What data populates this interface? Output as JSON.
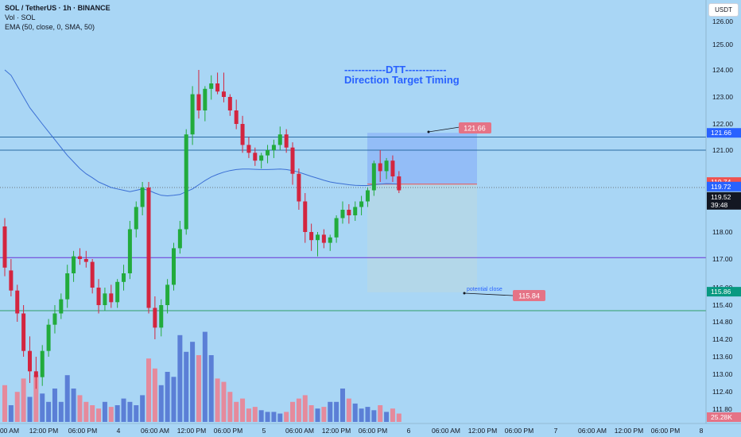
{
  "header": {
    "symbol_line": "SOL / TetherUS · 1h · BINANCE",
    "volume_line": "Vol · SOL",
    "ema_line": "EMA (50, close, 0, SMA, 50)"
  },
  "annotation": {
    "dtt_line": "------------DTT------------",
    "dtt_subtitle": "Direction Target Timing",
    "target_label": "121.66",
    "stop_label": "115.84",
    "potential_close": "potential close"
  },
  "currency_button": "USDT",
  "price_axis": {
    "ticks": [
      "126.00",
      "125.00",
      "124.00",
      "123.00",
      "122.00",
      "121.00",
      "119.00",
      "118.00",
      "117.00",
      "116.00",
      "115.40",
      "114.80",
      "114.20",
      "113.60",
      "113.00",
      "112.40",
      "111.80"
    ],
    "badges": [
      {
        "label": "121.66",
        "price": 121.66,
        "color": "#2962ff",
        "text": "#ffffff"
      },
      {
        "label": "119.74",
        "price": 119.74,
        "color": "#ef5350",
        "text": "#ffffff"
      },
      {
        "label": "119.72",
        "price": 119.72,
        "color": "#2962ff",
        "text": "#ffffff"
      },
      {
        "label": "119.52",
        "sub": "39:48",
        "price": 119.52,
        "color": "#131722",
        "text": "#ffffff"
      },
      {
        "label": "115.86",
        "price": 115.86,
        "color": "#089981",
        "text": "#ffffff"
      }
    ],
    "volume_badge": "25.28K"
  },
  "time_axis": [
    "00 AM",
    "12:00 PM",
    "06:00 PM",
    "4",
    "06:00 AM",
    "12:00 PM",
    "06:00 PM",
    "5",
    "06:00 AM",
    "12:00 PM",
    "06:00 PM",
    "6",
    "06:00 AM",
    "12:00 PM",
    "06:00 PM",
    "7",
    "06:00 AM",
    "12:00 PM",
    "06:00 PM",
    "8"
  ],
  "colors": {
    "up": "#22ab3c",
    "down": "#d3253f",
    "volume_up": "#5b7fd6",
    "volume_down": "#e58a9c",
    "ema": "#3b6fd4",
    "bg": "#a9d6f5"
  },
  "chart_data": {
    "type": "candlestick",
    "title": "SOL / TetherUS · 1h · BINANCE",
    "ylim": [
      111.3,
      126.3
    ],
    "price_levels": [
      {
        "price": 121.5,
        "color": "#2b6ca3"
      },
      {
        "price": 121.0,
        "color": "#2b6ca3"
      },
      {
        "price": 117.05,
        "color": "#6a32d6"
      },
      {
        "price": 115.2,
        "color": "#2f9e66"
      },
      {
        "price": 119.6,
        "color": "#555555",
        "dotted": true
      }
    ],
    "position": {
      "entry": 119.72,
      "target": 121.66,
      "stop": 115.84
    },
    "candles": [
      [
        118.2,
        118.5,
        116.4,
        116.7
      ],
      [
        116.6,
        117.0,
        115.7,
        115.9
      ],
      [
        115.9,
        116.1,
        114.8,
        115.1
      ],
      [
        115.1,
        115.4,
        113.6,
        113.8
      ],
      [
        113.8,
        114.3,
        112.7,
        113.1
      ],
      [
        113.1,
        113.6,
        112.5,
        112.9
      ],
      [
        112.9,
        114.0,
        112.6,
        113.8
      ],
      [
        113.8,
        114.9,
        113.6,
        114.7
      ],
      [
        114.7,
        115.4,
        114.4,
        115.1
      ],
      [
        115.1,
        115.8,
        114.9,
        115.6
      ],
      [
        115.6,
        116.8,
        115.3,
        116.5
      ],
      [
        116.5,
        117.3,
        116.2,
        117.1
      ],
      [
        117.1,
        117.4,
        116.8,
        117.0
      ],
      [
        117.0,
        117.3,
        116.7,
        116.9
      ],
      [
        116.9,
        117.0,
        115.8,
        116.0
      ],
      [
        116.0,
        116.3,
        115.1,
        115.4
      ],
      [
        115.4,
        116.0,
        115.2,
        115.8
      ],
      [
        115.8,
        116.1,
        115.3,
        115.5
      ],
      [
        115.5,
        116.3,
        115.3,
        116.2
      ],
      [
        116.2,
        116.8,
        115.9,
        116.5
      ],
      [
        116.5,
        118.4,
        116.3,
        118.1
      ],
      [
        118.1,
        119.1,
        117.8,
        118.9
      ],
      [
        118.9,
        119.8,
        118.6,
        119.6
      ],
      [
        119.6,
        119.8,
        115.1,
        115.3
      ],
      [
        115.3,
        115.7,
        114.2,
        114.6
      ],
      [
        114.6,
        115.6,
        114.3,
        115.4
      ],
      [
        115.4,
        116.3,
        115.1,
        116.1
      ],
      [
        116.1,
        117.6,
        115.9,
        117.4
      ],
      [
        117.4,
        118.4,
        117.2,
        118.1
      ],
      [
        118.1,
        121.8,
        117.9,
        121.6
      ],
      [
        121.6,
        123.4,
        121.2,
        123.1
      ],
      [
        123.1,
        124.0,
        122.2,
        122.5
      ],
      [
        122.5,
        123.4,
        122.1,
        123.3
      ],
      [
        123.3,
        123.8,
        122.9,
        123.5
      ],
      [
        123.5,
        123.9,
        123.1,
        123.2
      ],
      [
        123.2,
        123.9,
        122.8,
        123.0
      ],
      [
        123.0,
        123.1,
        122.3,
        122.5
      ],
      [
        122.5,
        122.9,
        121.8,
        122.0
      ],
      [
        122.0,
        122.3,
        120.9,
        121.2
      ],
      [
        121.2,
        121.5,
        120.7,
        120.9
      ],
      [
        120.9,
        121.1,
        120.4,
        120.6
      ],
      [
        120.6,
        120.9,
        120.3,
        120.8
      ],
      [
        120.8,
        121.2,
        120.5,
        121.0
      ],
      [
        121.0,
        121.4,
        120.7,
        121.2
      ],
      [
        121.2,
        121.9,
        121.0,
        121.6
      ],
      [
        121.6,
        121.8,
        120.9,
        121.1
      ],
      [
        121.1,
        121.3,
        119.7,
        120.1
      ],
      [
        120.1,
        120.3,
        118.8,
        119.1
      ],
      [
        119.1,
        119.4,
        117.6,
        118.0
      ],
      [
        118.0,
        118.3,
        117.3,
        117.7
      ],
      [
        117.7,
        118.0,
        117.1,
        117.9
      ],
      [
        117.9,
        118.1,
        117.4,
        117.6
      ],
      [
        117.6,
        117.9,
        117.3,
        117.8
      ],
      [
        117.8,
        118.6,
        117.6,
        118.5
      ],
      [
        118.5,
        119.1,
        118.3,
        118.8
      ],
      [
        118.8,
        119.0,
        118.3,
        118.6
      ],
      [
        118.6,
        119.1,
        118.4,
        118.9
      ],
      [
        118.9,
        119.3,
        118.6,
        119.1
      ],
      [
        119.1,
        119.6,
        118.9,
        119.5
      ],
      [
        119.5,
        120.6,
        119.3,
        120.5
      ],
      [
        120.5,
        121.0,
        119.8,
        120.2
      ],
      [
        120.2,
        120.7,
        119.9,
        120.6
      ],
      [
        120.6,
        120.8,
        119.8,
        120.0
      ],
      [
        120.0,
        120.2,
        119.4,
        119.5
      ]
    ],
    "volume": [
      22,
      10,
      18,
      26,
      15,
      28,
      17,
      12,
      20,
      12,
      28,
      20,
      16,
      12,
      10,
      8,
      12,
      9,
      10,
      14,
      12,
      10,
      16,
      38,
      32,
      22,
      30,
      27,
      52,
      42,
      48,
      40,
      54,
      40,
      26,
      24,
      18,
      12,
      14,
      8,
      9,
      7,
      6,
      6,
      5,
      6,
      12,
      14,
      16,
      10,
      8,
      9,
      12,
      12,
      20,
      14,
      11,
      8,
      9,
      7,
      10,
      6,
      8,
      5
    ],
    "volume_up": [
      0,
      1,
      0,
      0,
      1,
      0,
      1,
      1,
      1,
      1,
      1,
      1,
      0,
      0,
      0,
      0,
      1,
      0,
      1,
      1,
      1,
      1,
      1,
      0,
      0,
      1,
      1,
      1,
      1,
      1,
      1,
      0,
      1,
      1,
      0,
      0,
      0,
      0,
      0,
      0,
      0,
      1,
      1,
      1,
      1,
      0,
      0,
      0,
      0,
      0,
      1,
      0,
      1,
      1,
      1,
      0,
      1,
      1,
      1,
      1,
      0,
      1,
      0,
      0
    ],
    "ema": [
      124.0,
      123.8,
      123.4,
      123.0,
      122.6,
      122.3,
      122.0,
      121.7,
      121.4,
      121.1,
      120.8,
      120.55,
      120.3,
      120.1,
      119.95,
      119.8,
      119.7,
      119.6,
      119.55,
      119.5,
      119.45,
      119.5,
      119.55,
      119.5,
      119.4,
      119.32,
      119.3,
      119.32,
      119.35,
      119.45,
      119.55,
      119.7,
      119.85,
      119.98,
      120.08,
      120.16,
      120.22,
      120.26,
      120.28,
      120.28,
      120.27,
      120.26,
      120.26,
      120.27,
      120.28,
      120.26,
      120.22,
      120.16,
      120.08,
      120.0,
      119.93,
      119.86,
      119.8,
      119.76,
      119.73,
      119.7,
      119.68,
      119.67,
      119.67,
      119.7,
      119.72,
      119.74,
      119.73,
      119.72
    ]
  }
}
